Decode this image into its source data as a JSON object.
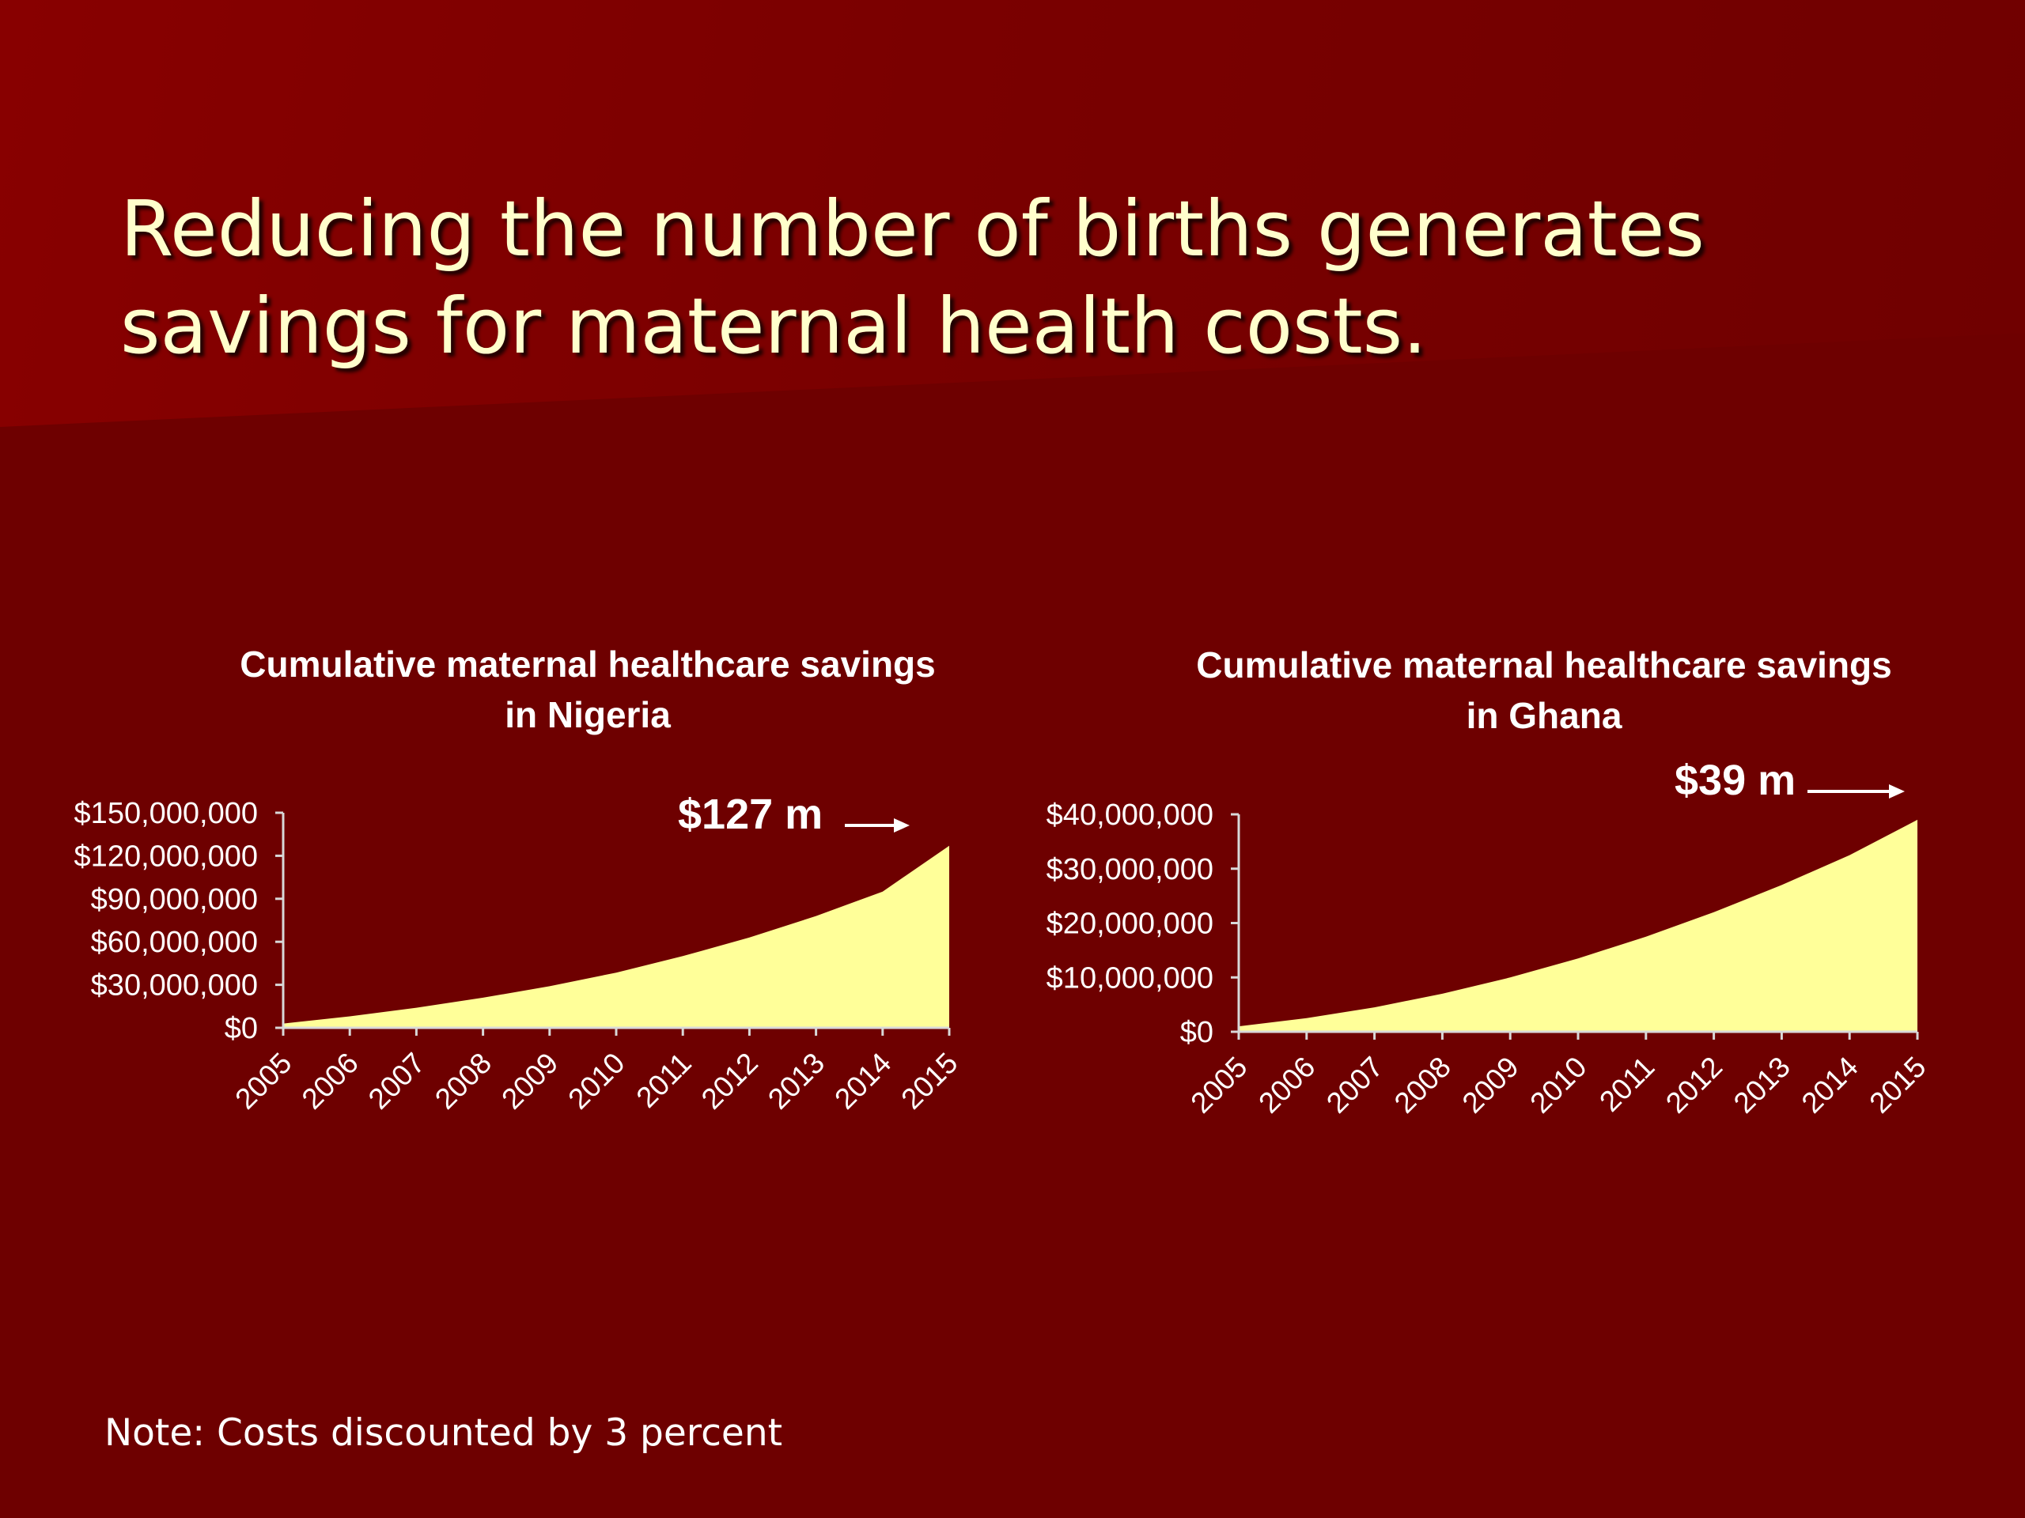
{
  "slide": {
    "title": "Reducing the number of births generates savings for maternal health costs.",
    "note": "Note: Costs discounted by 3 percent"
  },
  "colors": {
    "background": "#6e0000",
    "title_text": "#ffffcc",
    "area_fill": "#ffff99",
    "axis": "#d8d8d8",
    "text": "#ffffff"
  },
  "chart_data": [
    {
      "type": "area",
      "title_lines": [
        "Cumulative maternal healthcare savings",
        "in Nigeria"
      ],
      "x": [
        "2005",
        "2006",
        "2007",
        "2008",
        "2009",
        "2010",
        "2011",
        "2012",
        "2013",
        "2014",
        "2015"
      ],
      "values": [
        3000000,
        8000000,
        14000000,
        21000000,
        29000000,
        38500000,
        50000000,
        63000000,
        78000000,
        95000000,
        127000000
      ],
      "ylim": [
        0,
        150000000
      ],
      "yticks": [
        0,
        30000000,
        60000000,
        90000000,
        120000000,
        150000000
      ],
      "ytick_labels": [
        "$0",
        "$30,000,000",
        "$60,000,000",
        "$90,000,000",
        "$120,000,000",
        "$150,000,000"
      ],
      "annotation": "$127 m",
      "xlabel": "",
      "ylabel": "",
      "grid": false,
      "legend": "none"
    },
    {
      "type": "area",
      "title_lines": [
        "Cumulative maternal healthcare savings",
        "in Ghana"
      ],
      "x": [
        "2005",
        "2006",
        "2007",
        "2008",
        "2009",
        "2010",
        "2011",
        "2012",
        "2013",
        "2014",
        "2015"
      ],
      "values": [
        1000000,
        2500000,
        4500000,
        7000000,
        10000000,
        13500000,
        17500000,
        22000000,
        27000000,
        32500000,
        39000000
      ],
      "ylim": [
        0,
        40000000
      ],
      "yticks": [
        0,
        10000000,
        20000000,
        30000000,
        40000000
      ],
      "ytick_labels": [
        "$0",
        "$10,000,000",
        "$20,000,000",
        "$30,000,000",
        "$40,000,000"
      ],
      "annotation": "$39 m",
      "xlabel": "",
      "ylabel": "",
      "grid": false,
      "legend": "none"
    }
  ]
}
